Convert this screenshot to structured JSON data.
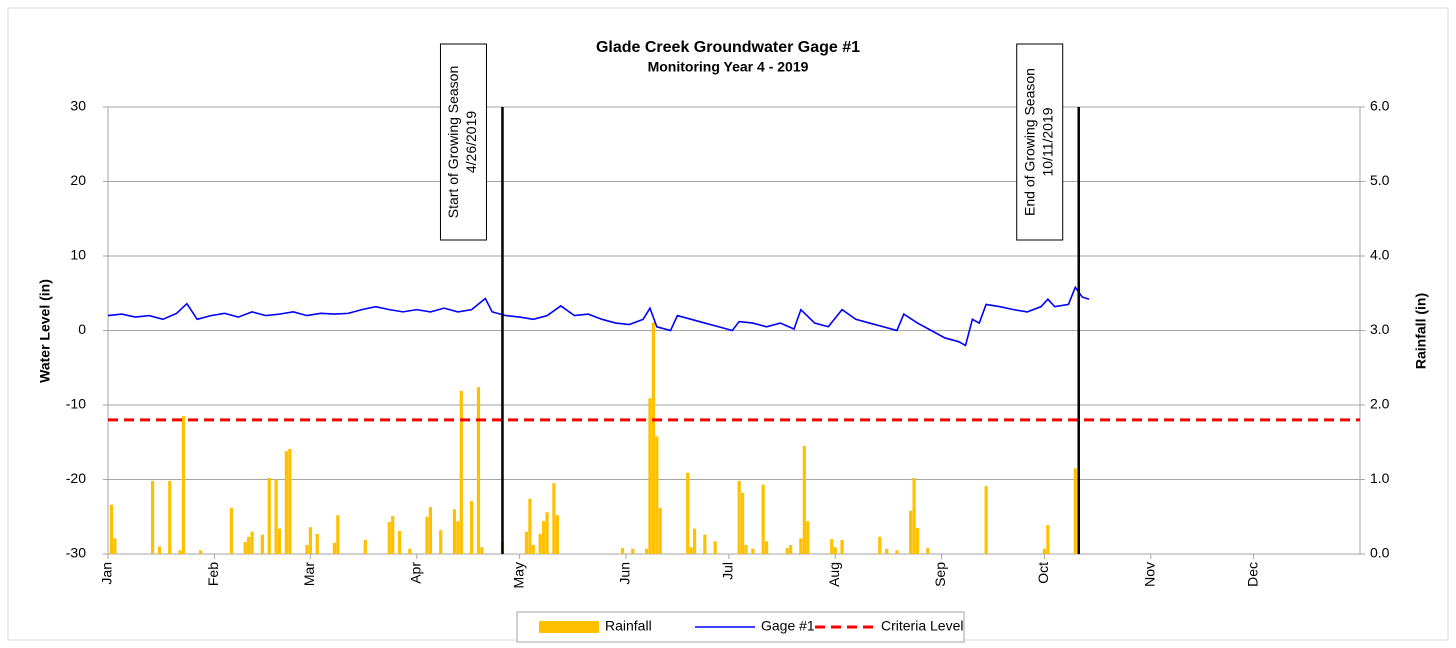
{
  "chart_data": {
    "type": "combo",
    "title": "Glade Creek Groundwater Gage #1",
    "subtitle": "Monitoring Year 4 - 2019",
    "y_label": "Water Level (in)",
    "y2_label": "Rainfall (in)",
    "xlim": [
      0,
      365
    ],
    "xticks": [
      {
        "value": 0,
        "label": "Jan"
      },
      {
        "value": 31,
        "label": "Feb"
      },
      {
        "value": 59,
        "label": "Mar"
      },
      {
        "value": 90,
        "label": "Apr"
      },
      {
        "value": 120,
        "label": "May"
      },
      {
        "value": 151,
        "label": "Jun"
      },
      {
        "value": 181,
        "label": "Jul"
      },
      {
        "value": 212,
        "label": "Aug"
      },
      {
        "value": 243,
        "label": "Sep"
      },
      {
        "value": 273,
        "label": "Oct"
      },
      {
        "value": 304,
        "label": "Nov"
      },
      {
        "value": 334,
        "label": "Dec"
      }
    ],
    "ylim": [
      -30,
      30
    ],
    "yticks": [
      -30,
      -20,
      -10,
      0,
      10,
      20,
      30
    ],
    "y2lim": [
      0,
      6
    ],
    "y2ticks": [
      {
        "value": 0,
        "label": "0.0"
      },
      {
        "value": 1,
        "label": "1.0"
      },
      {
        "value": 2,
        "label": "2.0"
      },
      {
        "value": 3,
        "label": "3.0"
      },
      {
        "value": 4,
        "label": "4.0"
      },
      {
        "value": 5,
        "label": "5.0"
      },
      {
        "value": 6,
        "label": "6.0"
      }
    ],
    "grid": true,
    "legend": "bottom",
    "series": [
      {
        "name": "Rainfall",
        "type": "bar",
        "axis": "y2",
        "color": "#ffc000",
        "x": [
          1,
          1,
          2,
          13,
          15,
          18,
          21,
          22,
          27,
          36,
          40,
          41,
          42,
          45,
          47,
          49,
          50,
          52,
          53,
          58,
          59,
          61,
          66,
          67,
          75,
          82,
          83,
          85,
          88,
          93,
          94,
          97,
          101,
          102,
          103,
          106,
          108,
          109,
          115,
          122,
          123,
          124,
          126,
          127,
          128,
          130,
          131,
          150,
          153,
          157,
          158,
          159,
          160,
          161,
          169,
          170,
          171,
          174,
          177,
          184,
          185,
          186,
          188,
          191,
          192,
          198,
          199,
          202,
          203,
          204,
          211,
          212,
          214,
          225,
          227,
          230,
          234,
          235,
          236,
          239,
          256,
          273,
          274,
          282
        ],
        "values": [
          0.66,
          0.08,
          0.21,
          0.98,
          0.1,
          0.98,
          0.05,
          1.85,
          0.05,
          0.62,
          0.16,
          0.23,
          0.3,
          0.26,
          1.02,
          1.0,
          0.34,
          1.38,
          1.41,
          0.12,
          0.36,
          0.27,
          0.15,
          0.52,
          0.19,
          0.43,
          0.51,
          0.31,
          0.07,
          0.5,
          0.63,
          0.32,
          0.6,
          0.44,
          2.19,
          0.71,
          2.24,
          0.09,
          0.16,
          0.3,
          0.74,
          0.12,
          0.27,
          0.44,
          0.56,
          0.95,
          0.52,
          0.08,
          0.07,
          0.07,
          2.09,
          3.11,
          1.58,
          0.62,
          1.09,
          0.09,
          0.34,
          0.26,
          0.17,
          0.98,
          0.82,
          0.12,
          0.07,
          0.93,
          0.17,
          0.08,
          0.12,
          0.21,
          1.45,
          0.44,
          0.2,
          0.09,
          0.19,
          0.23,
          0.07,
          0.05,
          0.58,
          1.02,
          0.35,
          0.08,
          0.91,
          0.07,
          0.39,
          1.15
        ]
      },
      {
        "name": "Gage #1",
        "type": "line",
        "color": "#0000ff",
        "x": [
          0,
          4,
          8,
          12,
          16,
          20,
          23,
          26,
          30,
          34,
          38,
          42,
          46,
          50,
          54,
          58,
          62,
          66,
          70,
          74,
          78,
          82,
          86,
          90,
          94,
          98,
          102,
          106,
          110,
          112,
          116,
          120,
          124,
          128,
          132,
          136,
          140,
          144,
          148,
          152,
          156,
          158,
          160,
          164,
          166,
          170,
          174,
          178,
          182,
          184,
          188,
          192,
          196,
          200,
          202,
          206,
          210,
          214,
          218,
          222,
          226,
          230,
          232,
          236,
          240,
          244,
          248,
          250,
          252,
          254,
          256,
          260,
          264,
          268,
          272,
          274,
          276,
          280,
          282,
          284,
          286
        ],
        "values": [
          2,
          2.2,
          1.8,
          2,
          1.5,
          2.3,
          3.6,
          1.5,
          2,
          2.3,
          1.8,
          2.5,
          2,
          2.2,
          2.5,
          2,
          2.3,
          2.2,
          2.3,
          2.8,
          3.2,
          2.8,
          2.5,
          2.8,
          2.5,
          3,
          2.5,
          2.8,
          4.3,
          2.5,
          2,
          1.8,
          1.5,
          2,
          3.3,
          2,
          2.2,
          1.5,
          1,
          0.8,
          1.5,
          3,
          0.5,
          0,
          2,
          1.5,
          1,
          0.5,
          0,
          1.2,
          1,
          0.5,
          1,
          0.2,
          2.8,
          1,
          0.5,
          2.8,
          1.5,
          1,
          0.5,
          0,
          2.2,
          1,
          0,
          -1,
          -1.5,
          -2,
          1.5,
          1,
          3.5,
          3.2,
          2.8,
          2.5,
          3.2,
          4.2,
          3.2,
          3.5,
          5.8,
          4.5,
          4.2
        ]
      },
      {
        "name": "Criteria Level",
        "type": "dashed",
        "color": "#ff0000",
        "x": [
          0,
          365
        ],
        "values": [
          -12,
          -12
        ]
      }
    ],
    "annotations": [
      {
        "x": 115,
        "lines": [
          "Start of Growing Season",
          "4/26/2019"
        ]
      },
      {
        "x": 283,
        "lines": [
          "End of Growing Season",
          "10/11/2019"
        ]
      }
    ]
  }
}
